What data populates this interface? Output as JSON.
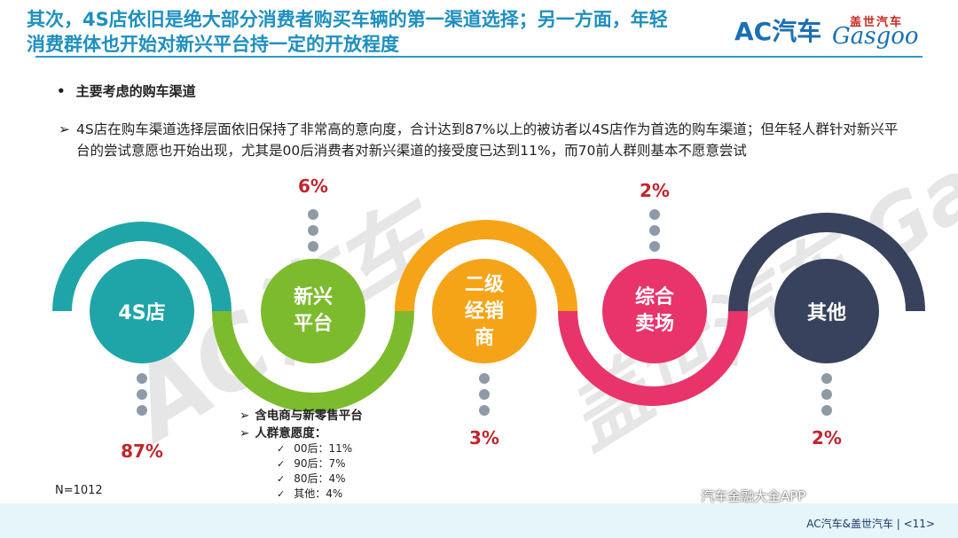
{
  "header": {
    "title_line1": "其次，4S店依旧是绝大部分消费者购买车辆的第一渠道选择；另一方面，年轻",
    "title_line2": "消费群体也开始对新兴平台持一定的开放程度",
    "logo_ac": "AC汽车",
    "logo_gasgoo_cn": "盖世汽车",
    "logo_gasgoo_en": "Gasgoo"
  },
  "section": {
    "bullet": "主要考虑的购车渠道",
    "description": "4S店在购车渠道选择层面依旧保持了非常高的意向度，合计达到87%以上的被访者以4S店作为首选的购车渠道；但年轻人群针对新兴平台的尝试意愿也开始出现，尤其是00后消费者对新兴渠道的接受度已达到11%，而70前人群则基本不愿意尝试"
  },
  "channels": [
    {
      "label": "4S店",
      "value": "87%",
      "color": "#1fa5a8"
    },
    {
      "label": "新兴平台",
      "value": "6%",
      "color": "#7dbb2e"
    },
    {
      "label": "二级经销商",
      "value": "3%",
      "color": "#f5a417"
    },
    {
      "label": "综合卖场",
      "value": "2%",
      "color": "#e8336b"
    },
    {
      "label": "其他",
      "value": "2%",
      "color": "#38425c"
    }
  ],
  "notes": {
    "line1": "含电商与新零售平台",
    "line2": "人群意愿度：",
    "sub": [
      "00后：11%",
      "90后：7%",
      "80后：4%",
      "其他：4%"
    ]
  },
  "sample": "N=1012",
  "watermark": {
    "ac": "AC汽车",
    "gasgoo": "盖世汽车 Gasgoo"
  },
  "footer": {
    "wechat": "汽车金融大全APP",
    "page": "AC汽车&盖世汽车 | <11>"
  }
}
